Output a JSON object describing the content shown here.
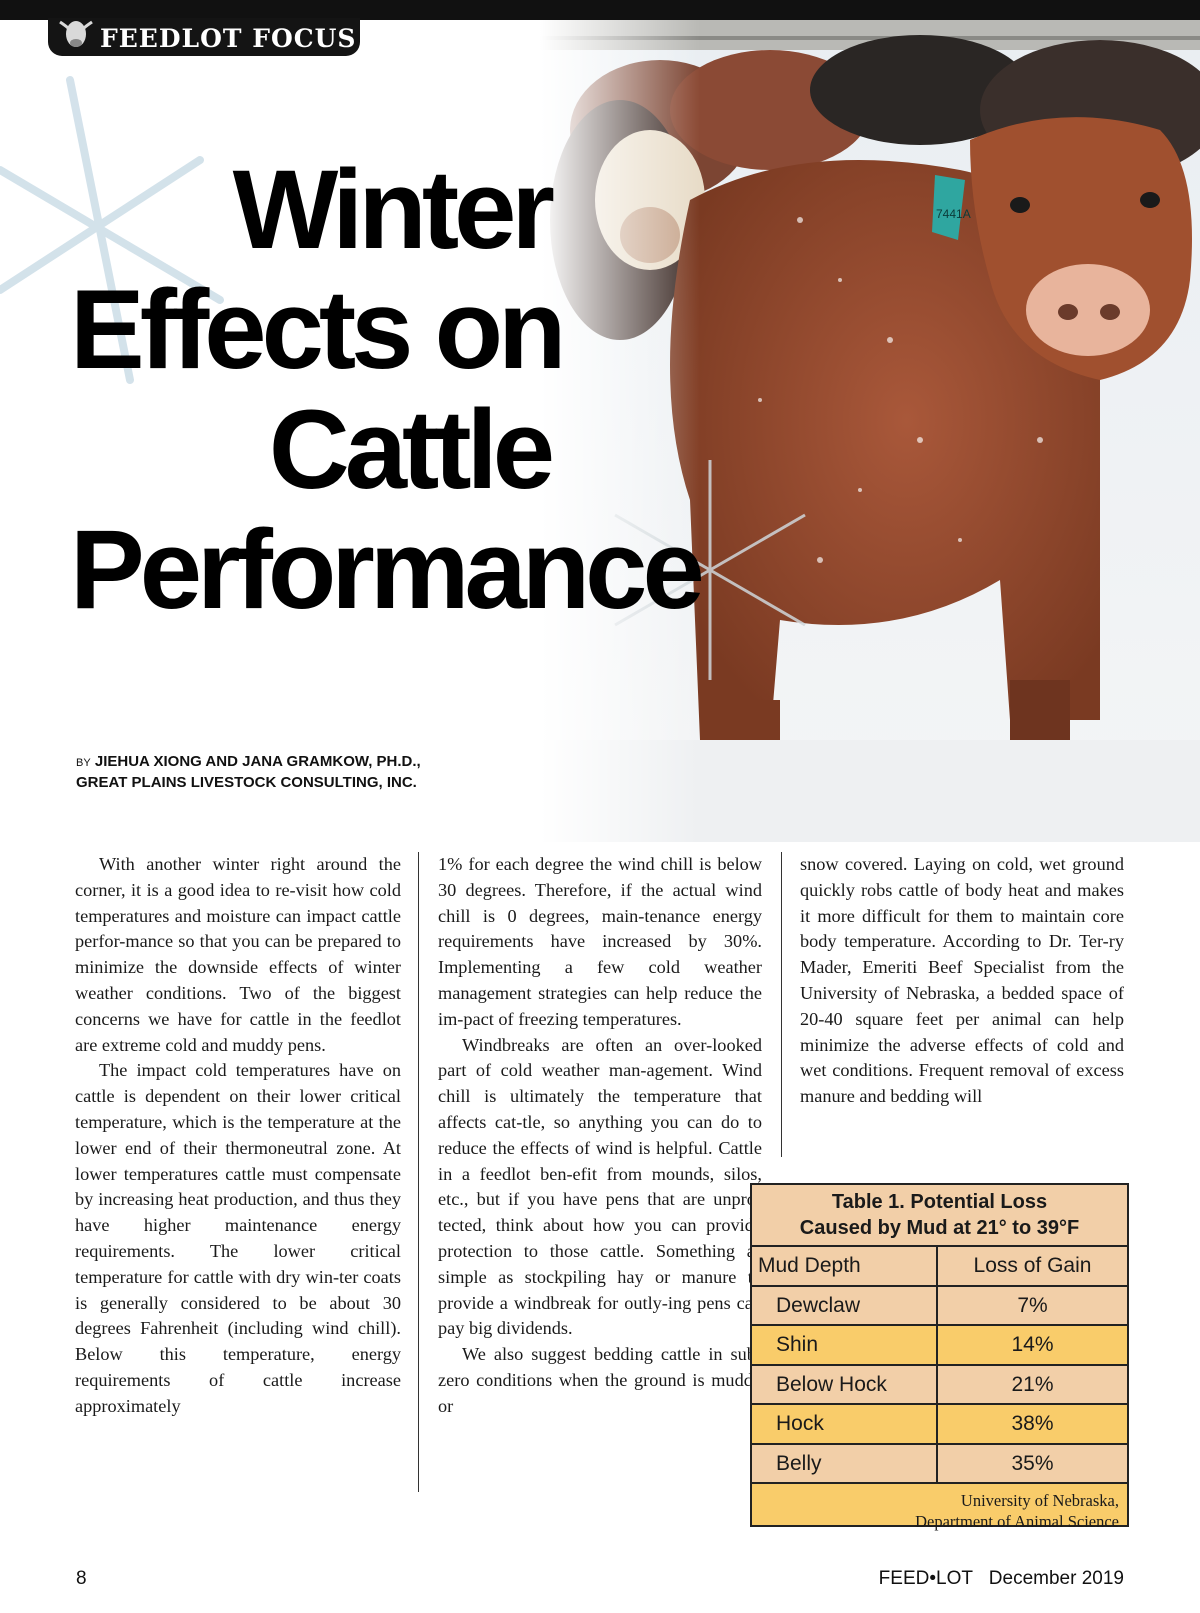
{
  "header": {
    "section_label": "FEEDLOT FOCUS"
  },
  "article": {
    "title_lines": [
      "Winter",
      "Effects on",
      "Cattle",
      "Performance"
    ],
    "byline_prefix": "BY",
    "byline_authors": "JIEHUA XIONG AND JANA GRAMKOW, PH.D.,",
    "byline_org": "GREAT PLAINS LIVESTOCK CONSULTING, INC.",
    "col1_p1": "With another winter right around the corner, it is a good idea to re-visit how cold temperatures and moisture can impact cattle perfor-mance so that you can be prepared to minimize the downside effects of winter weather conditions. Two of the biggest concerns we have for cattle in the feedlot are extreme cold and muddy pens.",
    "col1_p2": "The impact cold temperatures have on cattle is dependent on their lower critical temperature, which is the temperature at the lower end of their thermoneutral zone. At lower temperatures cattle must compensate by increasing heat production, and thus they have higher maintenance energy requirements. The lower critical temperature for cattle with dry win-ter coats is generally considered to be about 30 degrees Fahrenheit (including wind chill). Below this temperature, energy requirements of cattle increase approximately",
    "col2_p1": "1% for each degree the wind chill is below 30 degrees. Therefore, if the actual wind chill is 0 degrees, main-tenance energy requirements have increased by 30%. Implementing a few cold weather management strategies can help reduce the im-pact of freezing temperatures.",
    "col2_p2": "Windbreaks are often an over-looked part of cold weather man-agement. Wind chill is ultimately the temperature that affects cat-tle, so anything you can do to reduce the effects of wind is helpful. Cattle in a feedlot ben-efit from mounds, silos, etc., but if you have pens that are unpro-tected, think about how you can provide protection to those cattle. Something as simple as stockpiling hay or manure to provide a windbreak for outly-ing pens can pay big dividends.",
    "col2_p3": "We also suggest bedding cattle in sub-zero conditions when the ground is muddy or",
    "col3_p1": "snow covered. Laying on cold, wet ground quickly robs cattle of body heat and makes it more difficult for them to maintain core body temperature. According to Dr. Ter-ry Mader, Emeriti Beef Specialist from the University of Nebraska, a bedded space of 20-40 square feet per animal can help minimize the adverse effects of cold and wet conditions. Frequent removal of excess manure and bedding will"
  },
  "table": {
    "title_line1": "Table 1. Potential Loss",
    "title_line2": "Caused by Mud at 21° to 39°F",
    "col_header_1": "Mud Depth",
    "col_header_2": "Loss of Gain",
    "rows": [
      {
        "depth": "Dewclaw",
        "loss": "7%"
      },
      {
        "depth": "Shin",
        "loss": "14%"
      },
      {
        "depth": "Below Hock",
        "loss": "21%"
      },
      {
        "depth": "Hock",
        "loss": "38%"
      },
      {
        "depth": "Belly",
        "loss": "35%"
      }
    ],
    "source_line1": "University of Nebraska,",
    "source_line2": "Department of Animal Science"
  },
  "photo": {
    "ear_tag": "7441A"
  },
  "footer": {
    "page_number": "8",
    "publication": "FEED•LOT",
    "issue": "December 2019"
  },
  "colors": {
    "table_peach": "#f2cfa8",
    "table_gold": "#f9cc6a",
    "cattle_red": "#9a4a2a"
  }
}
